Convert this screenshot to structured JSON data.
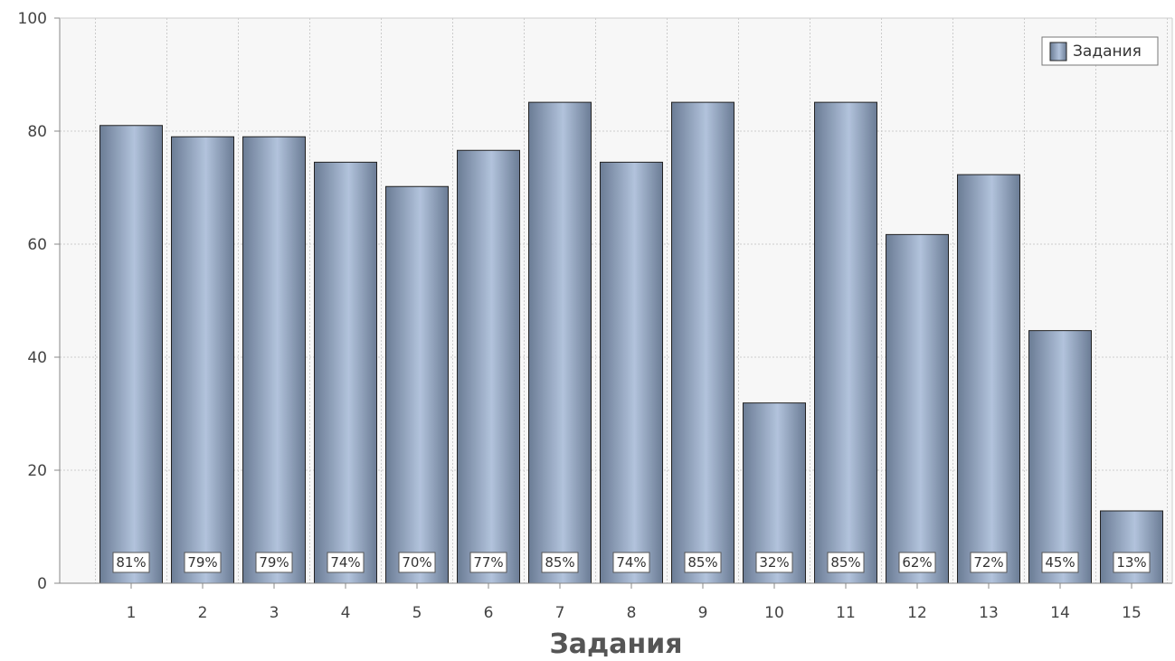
{
  "chart_data": {
    "type": "bar",
    "categories": [
      "1",
      "2",
      "3",
      "4",
      "5",
      "6",
      "7",
      "8",
      "9",
      "10",
      "11",
      "12",
      "13",
      "14",
      "15"
    ],
    "series": [
      {
        "name": "Задания",
        "values": [
          81,
          79,
          79,
          74.5,
          70.2,
          76.6,
          85.1,
          74.5,
          85.1,
          31.9,
          85.1,
          61.7,
          72.3,
          44.7,
          12.8
        ],
        "labels": [
          "81%",
          "79%",
          "79%",
          "74%",
          "70%",
          "77%",
          "85%",
          "74%",
          "85%",
          "32%",
          "85%",
          "62%",
          "72%",
          "45%",
          "13%"
        ]
      }
    ],
    "title": "",
    "xlabel": "Задания",
    "ylabel": "",
    "ylim": [
      0,
      100
    ],
    "yticks": [
      "0",
      "20",
      "40",
      "60",
      "80",
      "100"
    ],
    "grid": true,
    "legend_position": "top-right",
    "colors": {
      "bar_light": "#b2c3dc",
      "bar_dark": "#6b7c95",
      "bar_stroke": "#222222",
      "plot_bg": "#f7f7f7",
      "grid": "#cccccc"
    }
  }
}
